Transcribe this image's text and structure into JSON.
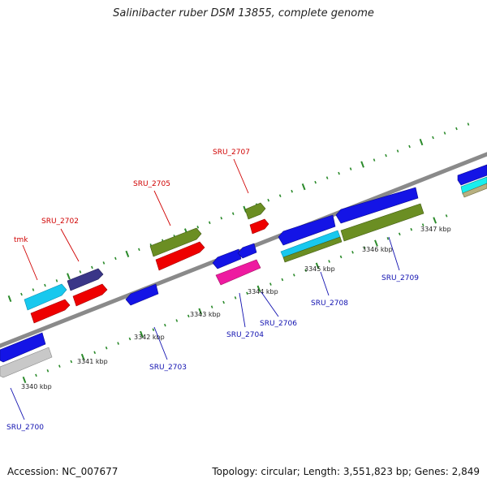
{
  "title": "Salinibacter ruber DSM 13855, complete genome",
  "accession": "Accession: NC_007677",
  "topology": "Topology: circular; Length: 3,551,823 bp; Genes: 2,849",
  "scale_labels": [
    "3340 kbp",
    "3341 kbp",
    "3342 kbp",
    "3343 kbp",
    "3344 kbp",
    "3345 kbp",
    "3346 kbp",
    "3347 kbp"
  ],
  "gene_labels": [
    {
      "text": "tmk",
      "color": "#d00000"
    },
    {
      "text": "SRU_2702",
      "color": "#d00000"
    },
    {
      "text": "SRU_2705",
      "color": "#d00000"
    },
    {
      "text": "SRU_2707",
      "color": "#d00000"
    },
    {
      "text": "SRU_2700",
      "color": "#1010b0"
    },
    {
      "text": "SRU_2703",
      "color": "#1010b0"
    },
    {
      "text": "SRU_2704",
      "color": "#1010b0"
    },
    {
      "text": "SRU_2706",
      "color": "#1010b0"
    },
    {
      "text": "SRU_2708",
      "color": "#1010b0"
    },
    {
      "text": "SRU_2709",
      "color": "#1010b0"
    }
  ],
  "colors": {
    "backbone": "#8a8a8a",
    "tick": "#2a8a2a",
    "blue": "#1414e6",
    "red": "#ee0000",
    "olive": "#6b8e23",
    "cyan": "#18c8ee",
    "navy": "#3a3688",
    "magenta": "#ee1aa0",
    "gray": "#bdbdbd",
    "tan": "#b8b080"
  }
}
